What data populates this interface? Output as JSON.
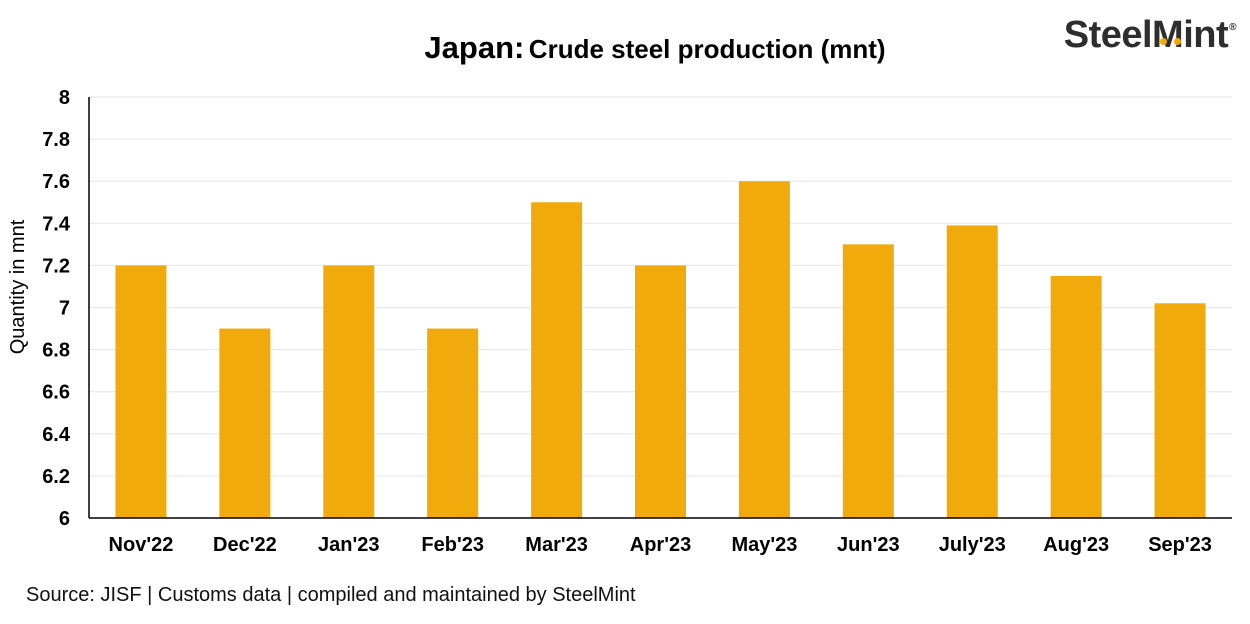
{
  "header": {
    "title_main": "Japan:",
    "title_sub": "Crude steel production (mnt)",
    "logo_text": "SteelMint",
    "logo_mark": "®"
  },
  "footer": {
    "source": "Source: JISF | Customs data | compiled and maintained by SteelMint"
  },
  "chart_data": {
    "type": "bar",
    "title": "Japan: Crude steel production (mnt)",
    "xlabel": "",
    "ylabel": "Quantity in mnt",
    "ylim": [
      6,
      8
    ],
    "yticks": [
      6,
      6.2,
      6.4,
      6.6,
      6.8,
      7,
      7.2,
      7.4,
      7.6,
      7.8,
      8
    ],
    "grid": true,
    "categories": [
      "Nov'22",
      "Dec'22",
      "Jan'23",
      "Feb'23",
      "Mar'23",
      "Apr'23",
      "May'23",
      "Jun'23",
      "July'23",
      "Aug'23",
      "Sep'23"
    ],
    "values": [
      7.2,
      6.9,
      7.2,
      6.9,
      7.5,
      7.2,
      7.6,
      7.3,
      7.39,
      7.15,
      7.02
    ],
    "bar_color": "#f0aa0c"
  }
}
